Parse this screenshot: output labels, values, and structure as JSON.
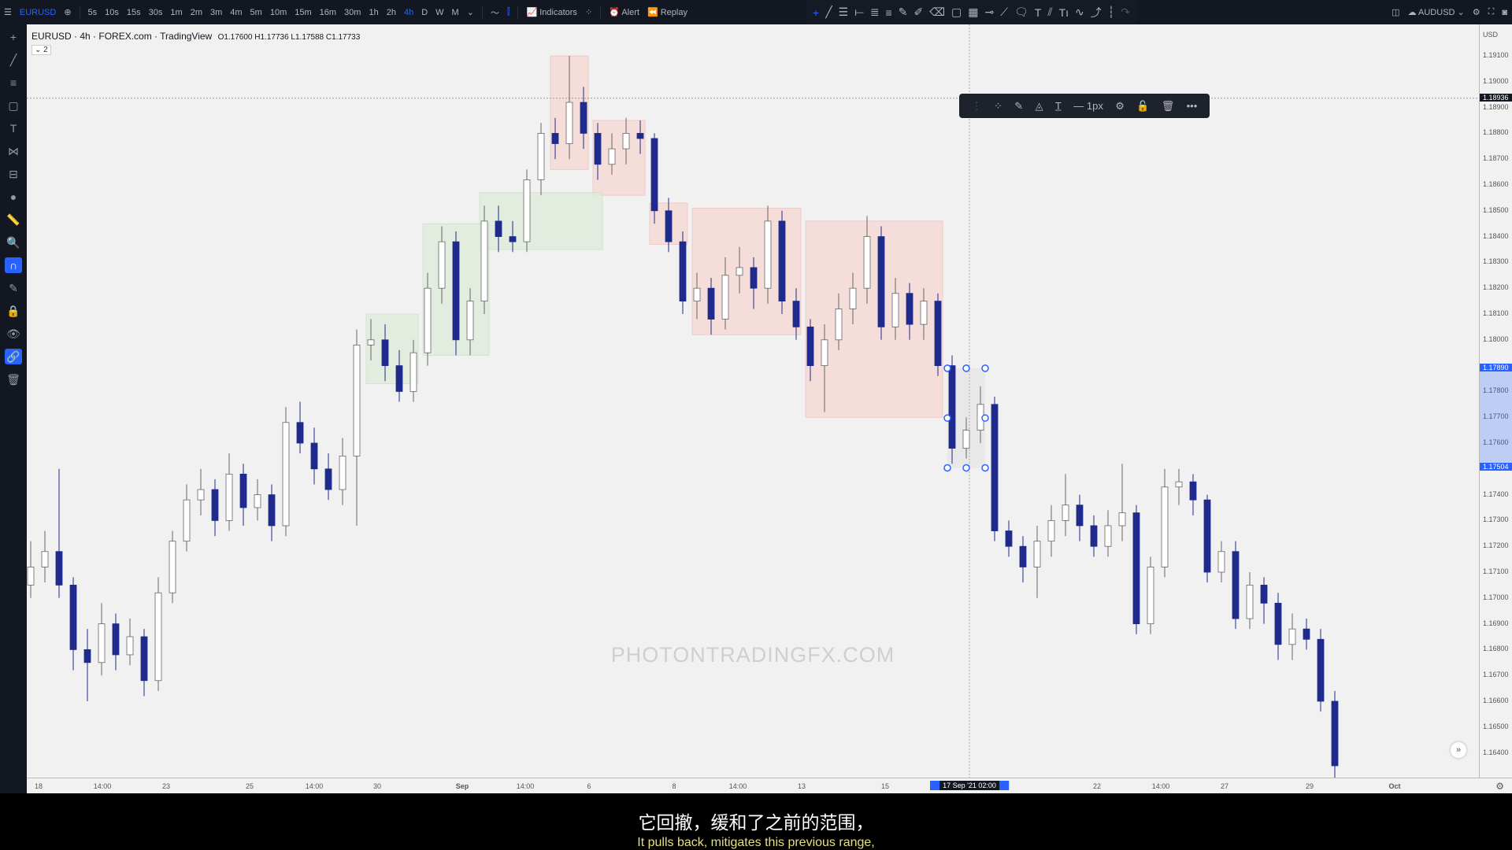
{
  "topbar": {
    "symbol": "EURUSD",
    "intervals": [
      "5s",
      "10s",
      "15s",
      "30s",
      "1m",
      "2m",
      "3m",
      "4m",
      "5m",
      "10m",
      "15m",
      "16m",
      "30m",
      "1h",
      "2h",
      "4h",
      "D",
      "W",
      "M"
    ],
    "active_interval": "4h",
    "indicators": "Indicators",
    "alert": "Alert",
    "replay": "Replay",
    "compare_symbol": "AUDUSD"
  },
  "legend": {
    "symbol": "EURUSD",
    "interval": "4h",
    "exchange": "FOREX.com",
    "source": "TradingView",
    "ohlc": "O1.17600 H1.17736 L1.17588 C1.17733",
    "collapsed_count": "2"
  },
  "float_toolbar": {
    "width_label": "1px"
  },
  "watermark": "PHOTONTRADINGFX.COM",
  "price_axis": {
    "currency": "USD",
    "labels": [
      "1.19100",
      "1.19000",
      "1.18900",
      "1.18800",
      "1.18700",
      "1.18600",
      "1.18500",
      "1.18400",
      "1.18300",
      "1.18200",
      "1.18100",
      "1.18000",
      "1.17800",
      "1.17700",
      "1.17600",
      "1.17400",
      "1.17300",
      "1.17200",
      "1.17100",
      "1.17000",
      "1.16900",
      "1.16800",
      "1.16700",
      "1.16600",
      "1.16500",
      "1.16400"
    ],
    "crosshair_price": "1.18936",
    "range_top": "1.17890",
    "range_bottom": "1.17504"
  },
  "time_axis": {
    "labels": [
      "18",
      "14:00",
      "23",
      "25",
      "14:00",
      "30",
      "Sep",
      "14:00",
      "6",
      "8",
      "14:00",
      "13",
      "15",
      "22",
      "14:00",
      "27",
      "29",
      "Oct"
    ],
    "crosshair_time": "17 Sep '21  02:00"
  },
  "subtitles": {
    "zh": "它回撤，缓和了之前的范围，",
    "en": "It pulls back, mitigates this previous range,"
  },
  "colors": {
    "bull": "#ffffff",
    "bear": "#1e2a8c",
    "supply_zone": "#f6d6d2",
    "demand_zone": "#dcebd9",
    "accent": "#2962ff"
  },
  "chart_data": {
    "type": "candlestick",
    "ylim": [
      1.163,
      1.192
    ],
    "candles": [
      [
        1.1705,
        1.1722,
        1.17,
        1.1712
      ],
      [
        1.1712,
        1.1726,
        1.1706,
        1.1718
      ],
      [
        1.1718,
        1.175,
        1.17,
        1.1705
      ],
      [
        1.1705,
        1.1708,
        1.1672,
        1.168
      ],
      [
        1.168,
        1.1688,
        1.166,
        1.1675
      ],
      [
        1.1675,
        1.1698,
        1.167,
        1.169
      ],
      [
        1.169,
        1.1694,
        1.1672,
        1.1678
      ],
      [
        1.1678,
        1.1692,
        1.1674,
        1.1685
      ],
      [
        1.1685,
        1.1688,
        1.1662,
        1.1668
      ],
      [
        1.1668,
        1.1708,
        1.1664,
        1.1702
      ],
      [
        1.1702,
        1.1726,
        1.1698,
        1.1722
      ],
      [
        1.1722,
        1.1744,
        1.1718,
        1.1738
      ],
      [
        1.1738,
        1.175,
        1.1732,
        1.1742
      ],
      [
        1.1742,
        1.1746,
        1.1724,
        1.173
      ],
      [
        1.173,
        1.1756,
        1.1726,
        1.1748
      ],
      [
        1.1748,
        1.1752,
        1.1728,
        1.1735
      ],
      [
        1.1735,
        1.1746,
        1.173,
        1.174
      ],
      [
        1.174,
        1.1744,
        1.1722,
        1.1728
      ],
      [
        1.1728,
        1.1774,
        1.1724,
        1.1768
      ],
      [
        1.1768,
        1.1776,
        1.1756,
        1.176
      ],
      [
        1.176,
        1.1766,
        1.1744,
        1.175
      ],
      [
        1.175,
        1.1756,
        1.1738,
        1.1742
      ],
      [
        1.1742,
        1.1762,
        1.1736,
        1.1755
      ],
      [
        1.1755,
        1.1804,
        1.1728,
        1.1798
      ],
      [
        1.1798,
        1.1808,
        1.1792,
        1.18
      ],
      [
        1.18,
        1.1806,
        1.1784,
        1.179
      ],
      [
        1.179,
        1.1796,
        1.1776,
        1.178
      ],
      [
        1.178,
        1.18,
        1.1776,
        1.1795
      ],
      [
        1.1795,
        1.1826,
        1.179,
        1.182
      ],
      [
        1.182,
        1.1844,
        1.1814,
        1.1838
      ],
      [
        1.1838,
        1.1842,
        1.1794,
        1.18
      ],
      [
        1.18,
        1.182,
        1.1794,
        1.1815
      ],
      [
        1.1815,
        1.1852,
        1.181,
        1.1846
      ],
      [
        1.1846,
        1.1852,
        1.1834,
        1.184
      ],
      [
        1.184,
        1.1846,
        1.1834,
        1.1838
      ],
      [
        1.1838,
        1.1866,
        1.1834,
        1.1862
      ],
      [
        1.1862,
        1.1884,
        1.1856,
        1.188
      ],
      [
        1.188,
        1.1886,
        1.187,
        1.1876
      ],
      [
        1.1876,
        1.191,
        1.187,
        1.1892
      ],
      [
        1.1892,
        1.1898,
        1.1874,
        1.188
      ],
      [
        1.188,
        1.1884,
        1.1862,
        1.1868
      ],
      [
        1.1868,
        1.188,
        1.1864,
        1.1874
      ],
      [
        1.1874,
        1.1886,
        1.1868,
        1.188
      ],
      [
        1.188,
        1.1885,
        1.1872,
        1.1878
      ],
      [
        1.1878,
        1.188,
        1.1845,
        1.185
      ],
      [
        1.185,
        1.1855,
        1.1834,
        1.1838
      ],
      [
        1.1838,
        1.1842,
        1.181,
        1.1815
      ],
      [
        1.1815,
        1.1826,
        1.1808,
        1.182
      ],
      [
        1.182,
        1.1824,
        1.1802,
        1.1808
      ],
      [
        1.1808,
        1.1832,
        1.1804,
        1.1825
      ],
      [
        1.1825,
        1.1836,
        1.1818,
        1.1828
      ],
      [
        1.1828,
        1.1832,
        1.1812,
        1.182
      ],
      [
        1.182,
        1.1852,
        1.1814,
        1.1846
      ],
      [
        1.1846,
        1.185,
        1.181,
        1.1815
      ],
      [
        1.1815,
        1.182,
        1.18,
        1.1805
      ],
      [
        1.1805,
        1.1808,
        1.1784,
        1.179
      ],
      [
        1.179,
        1.1806,
        1.1772,
        1.18
      ],
      [
        1.18,
        1.1818,
        1.1796,
        1.1812
      ],
      [
        1.1812,
        1.1826,
        1.1806,
        1.182
      ],
      [
        1.182,
        1.1848,
        1.1814,
        1.184
      ],
      [
        1.184,
        1.1844,
        1.18,
        1.1805
      ],
      [
        1.1805,
        1.1824,
        1.18,
        1.1818
      ],
      [
        1.1818,
        1.1822,
        1.18,
        1.1806
      ],
      [
        1.1806,
        1.182,
        1.18,
        1.1815
      ],
      [
        1.1815,
        1.1818,
        1.1786,
        1.179
      ],
      [
        1.179,
        1.1794,
        1.1752,
        1.1758
      ],
      [
        1.1758,
        1.177,
        1.1754,
        1.1765
      ],
      [
        1.1765,
        1.1782,
        1.176,
        1.1775
      ],
      [
        1.1775,
        1.1778,
        1.1722,
        1.1726
      ],
      [
        1.1726,
        1.173,
        1.1716,
        1.172
      ],
      [
        1.172,
        1.1724,
        1.1706,
        1.1712
      ],
      [
        1.1712,
        1.1728,
        1.17,
        1.1722
      ],
      [
        1.1722,
        1.1736,
        1.1716,
        1.173
      ],
      [
        1.173,
        1.1748,
        1.1724,
        1.1736
      ],
      [
        1.1736,
        1.174,
        1.1722,
        1.1728
      ],
      [
        1.1728,
        1.1732,
        1.1716,
        1.172
      ],
      [
        1.172,
        1.1734,
        1.1716,
        1.1728
      ],
      [
        1.1728,
        1.1752,
        1.1722,
        1.1733
      ],
      [
        1.1733,
        1.1736,
        1.1686,
        1.169
      ],
      [
        1.169,
        1.1716,
        1.1686,
        1.1712
      ],
      [
        1.1712,
        1.175,
        1.1708,
        1.1743
      ],
      [
        1.1743,
        1.175,
        1.1736,
        1.1745
      ],
      [
        1.1745,
        1.1748,
        1.1732,
        1.1738
      ],
      [
        1.1738,
        1.174,
        1.1706,
        1.171
      ],
      [
        1.171,
        1.1722,
        1.1706,
        1.1718
      ],
      [
        1.1718,
        1.1722,
        1.1688,
        1.1692
      ],
      [
        1.1692,
        1.171,
        1.1688,
        1.1705
      ],
      [
        1.1705,
        1.1708,
        1.169,
        1.1698
      ],
      [
        1.1698,
        1.1702,
        1.1676,
        1.1682
      ],
      [
        1.1682,
        1.1694,
        1.1676,
        1.1688
      ],
      [
        1.1688,
        1.1692,
        1.168,
        1.1684
      ],
      [
        1.1684,
        1.1688,
        1.1656,
        1.166
      ],
      [
        1.166,
        1.1664,
        1.163,
        1.1635
      ]
    ],
    "zones": [
      {
        "kind": "supply",
        "from": 37,
        "to": 39,
        "top": 1.191,
        "bottom": 1.1866
      },
      {
        "kind": "supply",
        "from": 40,
        "to": 43,
        "top": 1.1885,
        "bottom": 1.1856
      },
      {
        "kind": "supply",
        "from": 44,
        "to": 46,
        "top": 1.1853,
        "bottom": 1.1837
      },
      {
        "kind": "supply",
        "from": 47,
        "to": 54,
        "top": 1.1851,
        "bottom": 1.1802
      },
      {
        "kind": "supply",
        "from": 55,
        "to": 64,
        "top": 1.1846,
        "bottom": 1.177
      },
      {
        "kind": "demand",
        "from": 32,
        "to": 40,
        "top": 1.1857,
        "bottom": 1.1835
      },
      {
        "kind": "demand",
        "from": 28,
        "to": 32,
        "top": 1.1845,
        "bottom": 1.1794
      },
      {
        "kind": "demand",
        "from": 24,
        "to": 27,
        "top": 1.181,
        "bottom": 1.1783
      },
      {
        "kind": "selected",
        "from": 65,
        "to": 67,
        "top": 1.1789,
        "bottom": 1.17504
      }
    ],
    "crosshair_price": 1.18936,
    "crosshair_bar": 66
  }
}
